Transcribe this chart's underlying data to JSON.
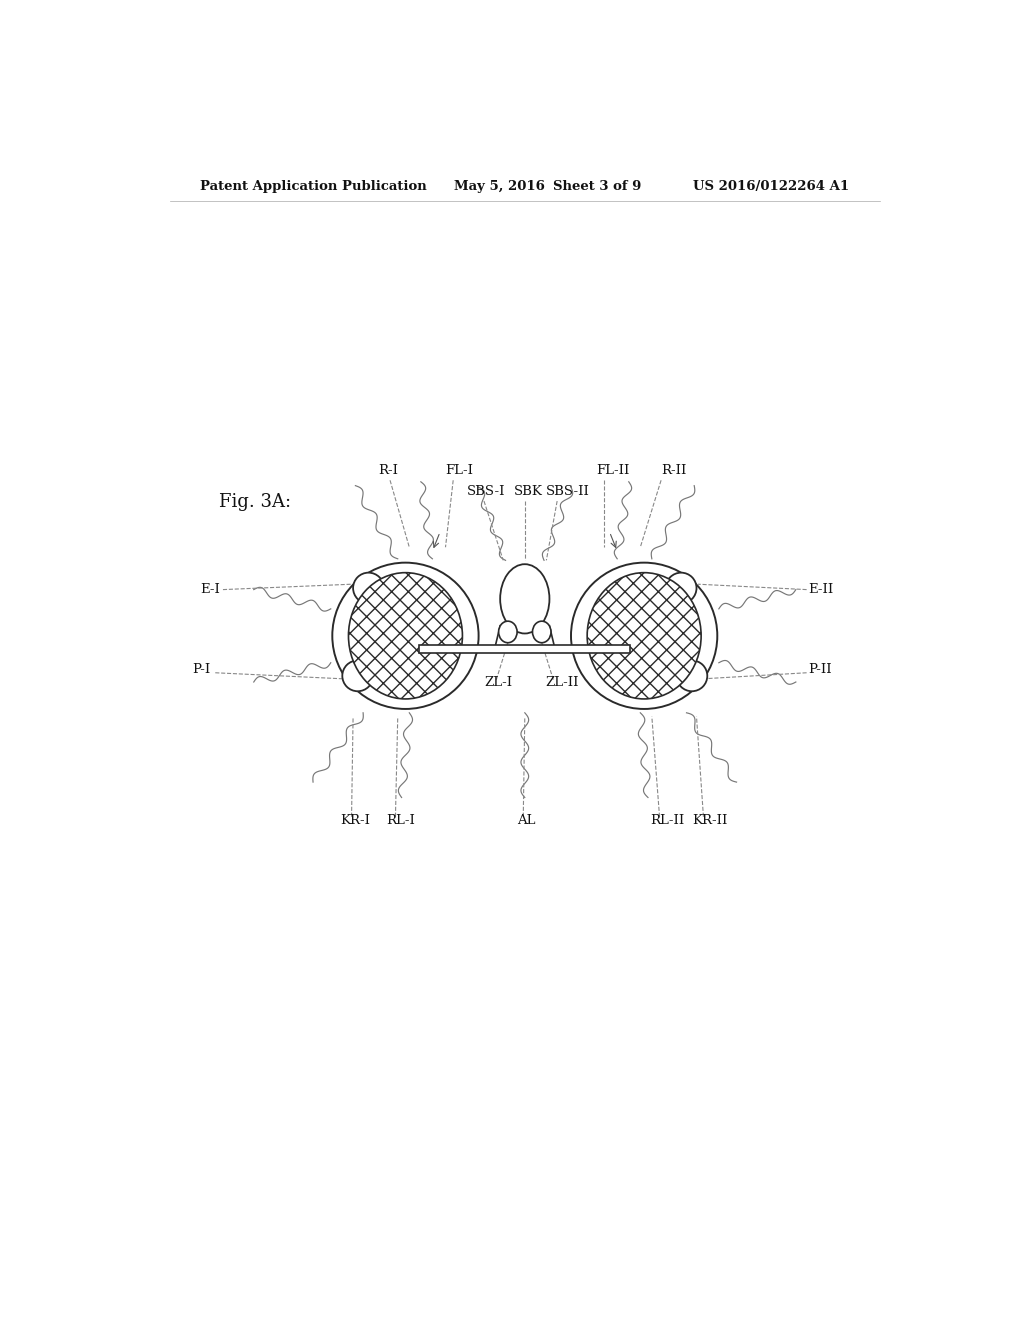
{
  "bg_color": "#ffffff",
  "line_color": "#2a2a2a",
  "header_text": "Patent Application Publication",
  "header_date": "May 5, 2016",
  "header_sheet": "Sheet 3 of 9",
  "header_patent": "US 2016/0122264 A1",
  "fig_label": "Fig. 3A:",
  "labels": {
    "R_I": "R-I",
    "FL_I": "FL-I",
    "SBS_I": "SBS-I",
    "SBK": "SBK",
    "SBS_II": "SBS-II",
    "FL_II": "FL-II",
    "R_II": "R-II",
    "E_I": "E-I",
    "E_II": "E-II",
    "P_I": "P-I",
    "P_II": "P-II",
    "ZL_I": "ZL-I",
    "ZL_II": "ZL-II",
    "KR_I": "KR-I",
    "RL_I": "RL-I",
    "AL": "AL",
    "RL_II": "RL-II",
    "KR_II": "KR-II"
  }
}
